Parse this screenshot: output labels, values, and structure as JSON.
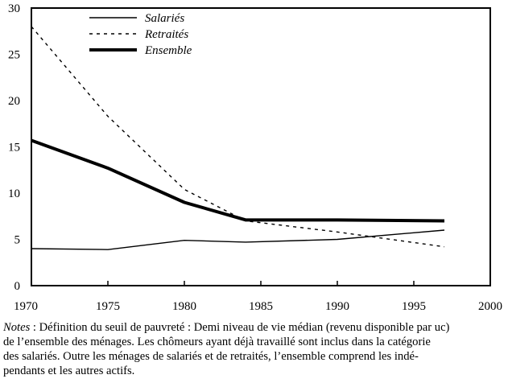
{
  "chart_data": {
    "type": "line",
    "title": "",
    "xlabel": "",
    "ylabel": "",
    "xlim": [
      1970,
      2000
    ],
    "ylim": [
      0,
      30
    ],
    "xticks": [
      1970,
      1975,
      1980,
      1985,
      1990,
      1995,
      2000
    ],
    "yticks": [
      0,
      5,
      10,
      15,
      20,
      25,
      30
    ],
    "grid": false,
    "legend_position": "top-left",
    "x": [
      1970,
      1975,
      1980,
      1984,
      1990,
      1997
    ],
    "series": [
      {
        "name": "Salariés",
        "style": "solid-thin",
        "values": [
          4.0,
          3.9,
          4.9,
          4.7,
          5.0,
          6.0
        ]
      },
      {
        "name": "Retraités",
        "style": "dashed",
        "values": [
          28.0,
          18.3,
          10.4,
          7.0,
          5.8,
          4.2
        ]
      },
      {
        "name": "Ensemble",
        "style": "solid-thick",
        "values": [
          15.7,
          12.7,
          9.0,
          7.1,
          7.1,
          7.0
        ]
      }
    ]
  },
  "notes": {
    "label": "Notes",
    "lines": [
      " : Définition du seuil de pauvreté : Demi niveau de vie médian (revenu disponible par uc)",
      "de l’ensemble des ménages. Les chômeurs ayant déjà travaillé sont inclus dans la catégorie",
      "des salariés. Outre les ménages de salariés et de retraités, l’ensemble comprend les indé-",
      "pendants et les autres actifs."
    ]
  }
}
